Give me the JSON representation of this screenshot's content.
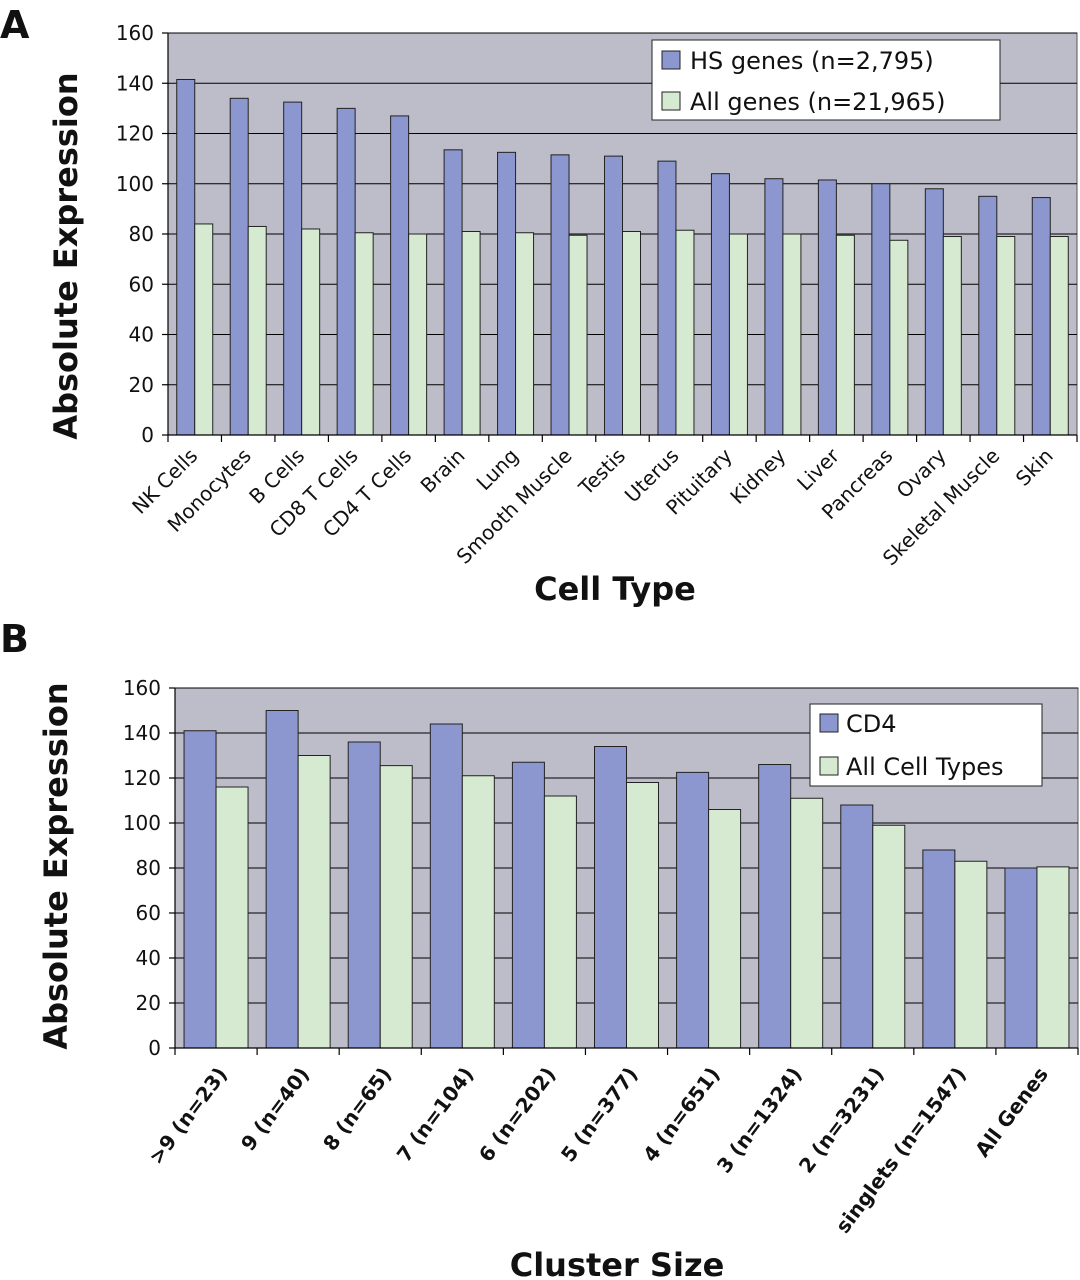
{
  "colors": {
    "series_primary": "#8c96cf",
    "series_secondary": "#d6ead1",
    "plot_background": "#bdbdc9"
  },
  "chart_data": [
    {
      "panel": "A",
      "type": "bar",
      "title": "",
      "xlabel": "Cell Type",
      "ylabel": "Absolute Expression",
      "ylim": [
        0,
        160
      ],
      "yticks": [
        0,
        20,
        40,
        60,
        80,
        100,
        120,
        140,
        160
      ],
      "grid": true,
      "legend_position": "top-right",
      "categories": [
        "NK Cells",
        "Monocytes",
        "B Cells",
        "CD8 T Cells",
        "CD4 T Cells",
        "Brain",
        "Lung",
        "Smooth Muscle",
        "Testis",
        "Uterus",
        "Pituitary",
        "Kidney",
        "Liver",
        "Pancreas",
        "Ovary",
        "Skeletal Muscle",
        "Skin"
      ],
      "series": [
        {
          "name": "HS genes (n=2,795)",
          "values": [
            141.5,
            134,
            132.5,
            130,
            127,
            113.5,
            112.5,
            111.5,
            111,
            109,
            104,
            102,
            101.5,
            100,
            98,
            95,
            94.5
          ]
        },
        {
          "name": "All genes (n=21,965)",
          "values": [
            84,
            83,
            82,
            80.5,
            80,
            81,
            80.5,
            79.5,
            81,
            81.5,
            80,
            80,
            79.5,
            77.5,
            79,
            79,
            79
          ]
        }
      ]
    },
    {
      "panel": "B",
      "type": "bar",
      "title": "",
      "xlabel": "Cluster Size",
      "ylabel": "Absolute Expression",
      "ylim": [
        0,
        160
      ],
      "yticks": [
        0,
        20,
        40,
        60,
        80,
        100,
        120,
        140,
        160
      ],
      "grid": true,
      "legend_position": "top-right",
      "categories": [
        ">9 (n=23)",
        "9 (n=40)",
        "8 (n=65)",
        "7 (n=104)",
        "6 (n=202)",
        "5 (n=377)",
        "4 (n=651)",
        "3 (n=1324)",
        "2 (n=3231)",
        "singlets (n=1547)",
        "All Genes"
      ],
      "series": [
        {
          "name": "CD4",
          "values": [
            141,
            150,
            136,
            144,
            127,
            134,
            122.5,
            126,
            108,
            88,
            80
          ]
        },
        {
          "name": "All Cell Types",
          "values": [
            116,
            130,
            125.5,
            121,
            112,
            118,
            106,
            111,
            99,
            83,
            80.5
          ]
        }
      ]
    }
  ]
}
